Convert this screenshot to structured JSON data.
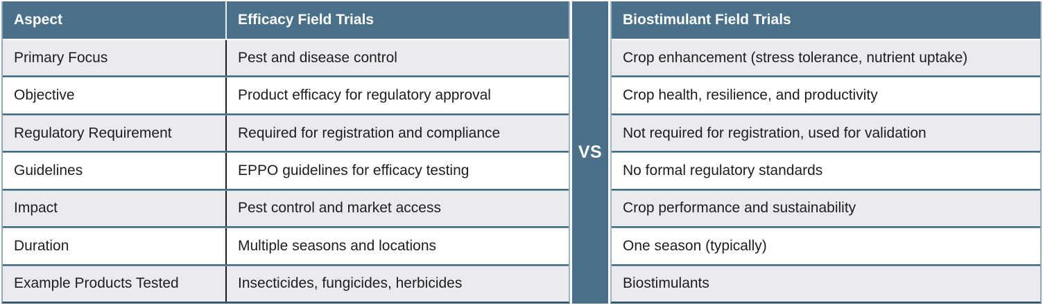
{
  "vs_label": "VS",
  "chart_data": {
    "type": "table",
    "columns": [
      "Aspect",
      "Efficacy Field Trials",
      "Biostimulant Field Trials"
    ],
    "rows": [
      [
        "Primary Focus",
        "Pest and disease control",
        "Crop enhancement (stress tolerance, nutrient uptake)"
      ],
      [
        "Objective",
        "Product efficacy for regulatory approval",
        "Crop health, resilience, and productivity"
      ],
      [
        "Regulatory Requirement",
        "Required for registration and compliance",
        "Not required for registration, used for validation"
      ],
      [
        "Guidelines",
        "EPPO guidelines for efficacy testing",
        "No formal regulatory standards"
      ],
      [
        "Impact",
        "Pest control and market access",
        "Crop performance and sustainability"
      ],
      [
        "Duration",
        "Multiple seasons and locations",
        "One season (typically)"
      ],
      [
        "Example Products Tested",
        "Insecticides, fungicides, herbicides",
        "Biostimulants"
      ]
    ],
    "layout": {
      "row_striping": "odd rows shaded, starting with first body row",
      "divider_between_rows": true,
      "center_badge": "VS"
    }
  },
  "colors": {
    "header_bg": "#4a7189",
    "vs_band_bg": "#4a7189",
    "row_shaded_bg": "#e9ebef",
    "row_plain_bg": "#ffffff",
    "divider_dark": "#2e5b73",
    "divider_light": "#a9c4d1",
    "header_text": "#ffffff",
    "body_text": "#1d1d1d"
  }
}
